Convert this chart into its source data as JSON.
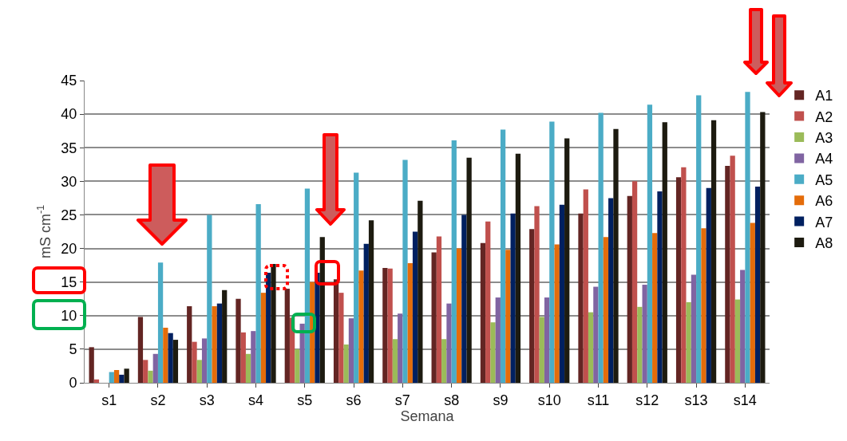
{
  "chart_data": {
    "type": "bar",
    "xlabel": "Semana",
    "ylabel": "mS cm$^{-1}$",
    "categories": [
      "s1",
      "s2",
      "s3",
      "s4",
      "s5",
      "s6",
      "s7",
      "s8",
      "s9",
      "s10",
      "s11",
      "s12",
      "s13",
      "s14"
    ],
    "series": [
      {
        "name": "A1",
        "color": "#632523",
        "values": [
          5.3,
          9.8,
          11.4,
          12.5,
          14.0,
          15.4,
          17.1,
          19.4,
          20.8,
          22.9,
          25.2,
          27.8,
          30.6,
          32.3
        ]
      },
      {
        "name": "A2",
        "color": "#c0504d",
        "values": [
          0.5,
          3.4,
          6.1,
          7.5,
          9.7,
          13.4,
          17.0,
          21.8,
          24.0,
          26.3,
          28.8,
          30.0,
          32.1,
          33.8
        ]
      },
      {
        "name": "A3",
        "color": "#9bbb59",
        "values": [
          0,
          1.8,
          3.4,
          4.3,
          5.0,
          5.7,
          6.5,
          6.5,
          9.0,
          9.8,
          10.5,
          11.3,
          12.0,
          12.4
        ]
      },
      {
        "name": "A4",
        "color": "#8064a2",
        "values": [
          0,
          4.3,
          6.6,
          7.7,
          8.8,
          9.6,
          10.3,
          11.8,
          12.7,
          12.7,
          14.3,
          14.6,
          16.1,
          16.8
        ]
      },
      {
        "name": "A5",
        "color": "#4bacc6",
        "values": [
          1.6,
          17.9,
          25.0,
          26.6,
          28.9,
          31.3,
          33.2,
          36.1,
          37.7,
          38.9,
          40.2,
          41.4,
          42.8,
          43.3
        ]
      },
      {
        "name": "A6",
        "color": "#e46c0a",
        "values": [
          1.9,
          8.2,
          11.4,
          13.4,
          15.0,
          16.7,
          17.8,
          20.0,
          19.8,
          20.6,
          21.7,
          22.3,
          23.0,
          23.8
        ]
      },
      {
        "name": "A7",
        "color": "#002060",
        "values": [
          1.2,
          7.4,
          11.8,
          16.4,
          16.4,
          20.7,
          22.5,
          25.0,
          25.2,
          26.5,
          27.5,
          28.5,
          29.0,
          29.2
        ]
      },
      {
        "name": "A8",
        "color": "#1d1b10",
        "values": [
          2.1,
          6.4,
          13.8,
          17.7,
          21.7,
          24.2,
          27.1,
          33.5,
          34.1,
          36.4,
          37.8,
          38.8,
          39.1,
          40.3
        ]
      }
    ],
    "ylim": [
      0,
      45
    ],
    "yticks": [
      0,
      5,
      10,
      15,
      20,
      25,
      30,
      35,
      40,
      45
    ],
    "grid": "y",
    "legend": "right"
  }
}
